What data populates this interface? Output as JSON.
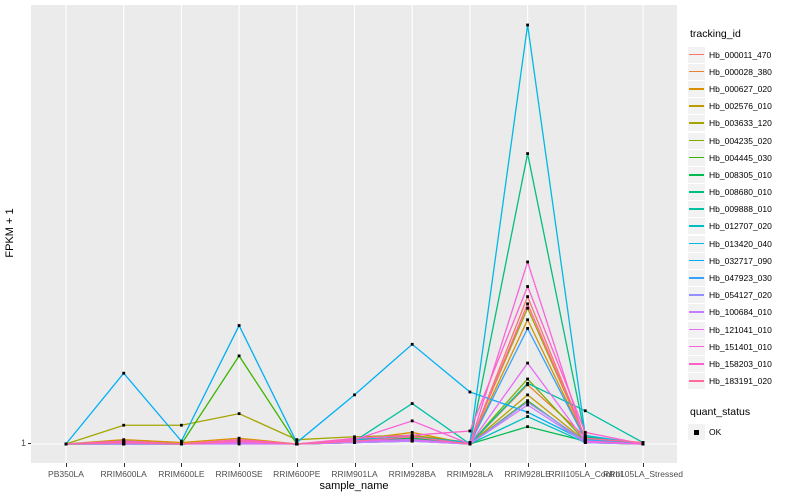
{
  "chart_data": {
    "type": "line",
    "xlabel": "sample_name",
    "ylabel": "FPKM + 1",
    "y_ticks": [
      "1"
    ],
    "ylim": [
      1,
      30
    ],
    "panel_bg": "#EBEBEB",
    "grid_color": "#FFFFFF",
    "point_color": "#000000",
    "legend_title": "tracking_id",
    "quant_legend_title": "quant_status",
    "quant_legend_label": "OK",
    "legend_position": "right",
    "categories": [
      "PB350LA",
      "RRIM600LA",
      "RRIM600LE",
      "RRIM600SE",
      "RRIM600PE",
      "RRIM901LA",
      "RRIM928BA",
      "RRIM928LA",
      "RRIM928LE",
      "RRII105LA_Control",
      "RRII105LA_Stressed"
    ],
    "series": [
      {
        "name": "Hb_000011_470",
        "color": "#F8766D",
        "values": [
          1,
          1.2,
          1,
          1.2,
          1,
          1.3,
          1.5,
          1,
          11.2,
          1.4,
          1
        ]
      },
      {
        "name": "Hb_000028_380",
        "color": "#EA8331",
        "values": [
          1,
          1.1,
          1,
          1.1,
          1,
          1.2,
          1.6,
          1,
          5.1,
          1.5,
          1
        ]
      },
      {
        "name": "Hb_000627_020",
        "color": "#D89000",
        "values": [
          1,
          1.3,
          1.1,
          1.4,
          1,
          1.3,
          1.8,
          1,
          9.6,
          1.3,
          1
        ]
      },
      {
        "name": "Hb_002576_010",
        "color": "#C09B00",
        "values": [
          1,
          1.2,
          1,
          1.3,
          1,
          1.1,
          1.4,
          1,
          4.4,
          1.2,
          1
        ]
      },
      {
        "name": "Hb_003633_120",
        "color": "#A3A500",
        "values": [
          1,
          2.3,
          2.3,
          3.1,
          1.3,
          1.5,
          1.6,
          1.1,
          10.4,
          1.4,
          1
        ]
      },
      {
        "name": "Hb_004235_020",
        "color": "#7CAE00",
        "values": [
          1,
          1.1,
          1,
          1.2,
          1,
          1.2,
          1.4,
          1,
          5.5,
          1.2,
          1
        ]
      },
      {
        "name": "Hb_004445_030",
        "color": "#39B600",
        "values": [
          1,
          1,
          1,
          7.1,
          1,
          1.1,
          1.3,
          1,
          4.0,
          1.1,
          1
        ]
      },
      {
        "name": "Hb_008305_010",
        "color": "#00BB4E",
        "values": [
          1,
          1.1,
          1,
          1.2,
          1,
          1.2,
          1.4,
          1,
          2.2,
          1.2,
          1
        ]
      },
      {
        "name": "Hb_008680_010",
        "color": "#00BF7D",
        "values": [
          1,
          1,
          1,
          1.1,
          1,
          1.1,
          1.3,
          1,
          21.1,
          1.5,
          1
        ]
      },
      {
        "name": "Hb_009888_010",
        "color": "#00C1A3",
        "values": [
          1,
          1.1,
          1,
          1.1,
          1,
          1.2,
          3.8,
          1,
          5.2,
          3.3,
          1.1
        ]
      },
      {
        "name": "Hb_012707_020",
        "color": "#00BFC4",
        "values": [
          1,
          1,
          1,
          1.1,
          1,
          1.1,
          1.2,
          1,
          2.9,
          1.1,
          1
        ]
      },
      {
        "name": "Hb_013420_040",
        "color": "#00BAE0",
        "values": [
          1,
          1.2,
          1,
          1.1,
          1,
          1.3,
          1.5,
          1.1,
          30,
          1.6,
          1
        ]
      },
      {
        "name": "Hb_032717_090",
        "color": "#00B0F6",
        "values": [
          1,
          5.9,
          1.2,
          9.2,
          1.1,
          4.4,
          7.9,
          4.6,
          3.2,
          1.2,
          1
        ]
      },
      {
        "name": "Hb_047923_030",
        "color": "#35A2FF",
        "values": [
          1,
          1.1,
          1,
          1.1,
          1,
          1.2,
          1.3,
          1,
          9.0,
          1.3,
          1
        ]
      },
      {
        "name": "Hb_054127_020",
        "color": "#9590FF",
        "values": [
          1,
          1,
          1,
          1.1,
          1,
          1.1,
          1.2,
          1,
          3.9,
          1.2,
          1
        ]
      },
      {
        "name": "Hb_100684_010",
        "color": "#C77CFF",
        "values": [
          1,
          1,
          1,
          1,
          1,
          1.1,
          1.2,
          1,
          3.7,
          1.1,
          1
        ]
      },
      {
        "name": "Hb_121041_010",
        "color": "#E76BF3",
        "values": [
          1,
          1.1,
          1,
          1.1,
          1,
          1.2,
          1.3,
          1,
          6.6,
          1.2,
          1
        ]
      },
      {
        "name": "Hb_151401_010",
        "color": "#FA62DB",
        "values": [
          1,
          1.1,
          1,
          1.2,
          1,
          1.3,
          2.6,
          1,
          13.6,
          1.2,
          1
        ]
      },
      {
        "name": "Hb_158203_010",
        "color": "#FF61CC",
        "values": [
          1,
          1.2,
          1,
          1.3,
          1,
          1.4,
          1.6,
          1.9,
          11.9,
          1.8,
          1
        ]
      },
      {
        "name": "Hb_183191_020",
        "color": "#FF6A98",
        "values": [
          1,
          1.1,
          1,
          1.2,
          1,
          1.2,
          1.5,
          1,
          10.7,
          1.4,
          1.1
        ]
      }
    ]
  }
}
